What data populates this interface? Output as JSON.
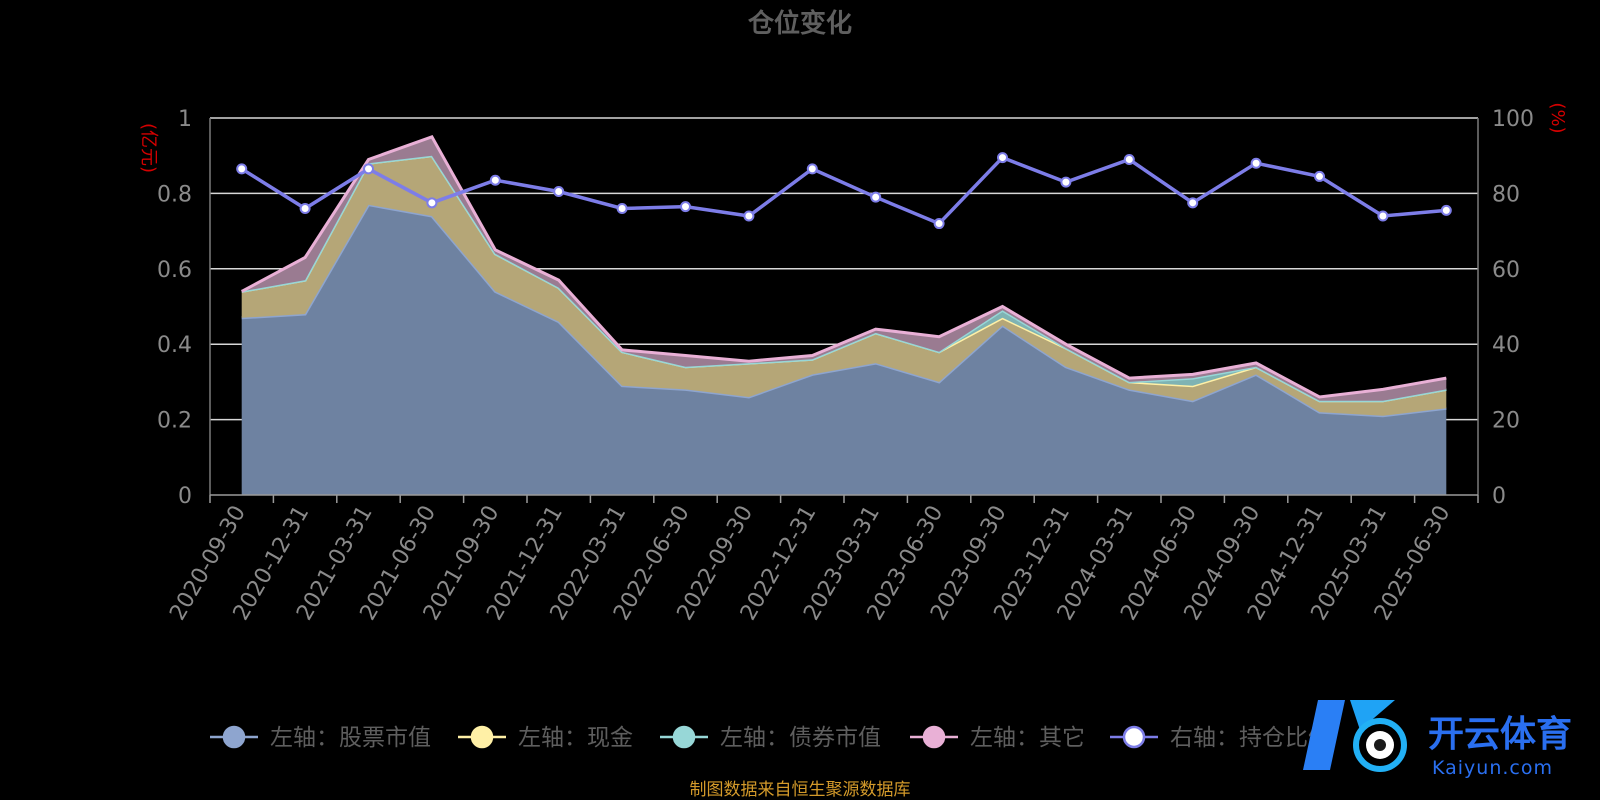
{
  "chart_data": {
    "type": "area",
    "title": "仓位变化",
    "y_left_unit": "(亿元)",
    "y_right_unit": "(%)",
    "y_left_ticks": [
      "0",
      "0.2",
      "0.4",
      "0.6",
      "0.8",
      "1"
    ],
    "y_right_ticks": [
      "0",
      "20",
      "40",
      "60",
      "80",
      "100"
    ],
    "ylim_left": [
      0,
      1
    ],
    "ylim_right": [
      0,
      100
    ],
    "grid": true,
    "legend_placement": "bottom",
    "categories": [
      "2020-09-30",
      "2020-12-31",
      "2021-03-31",
      "2021-06-30",
      "2021-09-30",
      "2021-12-31",
      "2022-03-31",
      "2022-06-30",
      "2022-09-30",
      "2022-12-31",
      "2023-03-31",
      "2023-06-30",
      "2023-09-30",
      "2023-12-31",
      "2024-03-31",
      "2024-06-30",
      "2024-09-30",
      "2024-12-31",
      "2025-03-31",
      "2025-06-30"
    ],
    "series": [
      {
        "name": "左轴：股票市值",
        "axis": "left",
        "stacked": true,
        "color": "#8ea5cf",
        "fill": "#6e82a1",
        "values": [
          0.47,
          0.48,
          0.77,
          0.74,
          0.54,
          0.46,
          0.29,
          0.28,
          0.26,
          0.32,
          0.35,
          0.3,
          0.45,
          0.34,
          0.28,
          0.25,
          0.32,
          0.22,
          0.21,
          0.23
        ]
      },
      {
        "name": "左轴：现金",
        "axis": "left",
        "stacked": true,
        "color": "#fff0a6",
        "fill": "#b5a677",
        "values": [
          0.07,
          0.09,
          0.11,
          0.16,
          0.1,
          0.09,
          0.09,
          0.06,
          0.09,
          0.04,
          0.08,
          0.08,
          0.02,
          0.05,
          0.02,
          0.04,
          0.02,
          0.03,
          0.04,
          0.05
        ]
      },
      {
        "name": "左轴：债券市值",
        "axis": "left",
        "stacked": true,
        "color": "#97d7d7",
        "fill": "#7fb3b3",
        "values": [
          0,
          0,
          0,
          0,
          0,
          0,
          0,
          0,
          0,
          0,
          0,
          0,
          0.02,
          0,
          0,
          0.02,
          0,
          0,
          0,
          0
        ]
      },
      {
        "name": "左轴：其它",
        "axis": "left",
        "stacked": true,
        "color": "#e9b0d6",
        "fill": "#9a7b91",
        "values": [
          0,
          0.06,
          0.01,
          0.05,
          0.01,
          0.02,
          0.005,
          0.03,
          0.005,
          0.01,
          0.01,
          0.04,
          0.01,
          0.01,
          0.01,
          0.01,
          0.01,
          0.01,
          0.03,
          0.03
        ]
      },
      {
        "name": "右轴：持仓比例",
        "axis": "right",
        "stacked": false,
        "color": "#7d7de8",
        "values": [
          86.5,
          76,
          86.5,
          77.5,
          83.5,
          80.5,
          76,
          76.5,
          74,
          86.5,
          79,
          72,
          89.5,
          83,
          89,
          77.5,
          88,
          84.5,
          74,
          75.5
        ]
      }
    ]
  },
  "source_note": "制图数据来自恒生聚源数据库",
  "watermark": {
    "cn": "开云体育",
    "en": "Kaiyun.com",
    "letter": "K"
  }
}
